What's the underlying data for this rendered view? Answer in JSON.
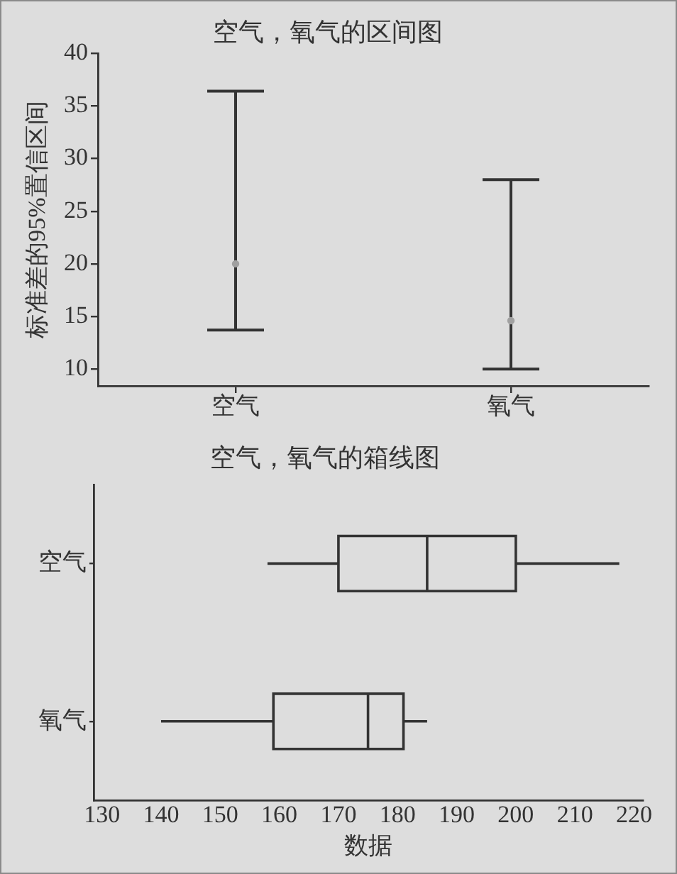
{
  "chart_data": [
    {
      "type": "scatter",
      "title": "空气，氧气的区间图",
      "ylabel": "标准差的95%置信区间",
      "categories": [
        "空气",
        "氧气"
      ],
      "values": [
        20,
        14.6
      ],
      "errors": [
        [
          13.7,
          36.4
        ],
        [
          10,
          28
        ]
      ],
      "color": "#a0a0a0",
      "marker": "circle",
      "ylim": [
        8.4,
        40
      ],
      "yticks": [
        10,
        15,
        20,
        25,
        30,
        35,
        40
      ]
    },
    {
      "type": "box",
      "orientation": "horizontal",
      "title": "空气，氧气的箱线图",
      "xlabel": "数据",
      "categories": [
        "空气",
        "氧气"
      ],
      "boxes": [
        {
          "low": 158,
          "q1": 170,
          "median": 185,
          "q3": 200,
          "high": 217.5
        },
        {
          "low": 140,
          "q1": 159,
          "median": 175,
          "q3": 181,
          "high": 185
        }
      ],
      "color": "#333333",
      "xlim": [
        128.6,
        221.5
      ],
      "xticks": [
        130,
        140,
        150,
        160,
        170,
        180,
        190,
        200,
        210,
        220
      ]
    }
  ]
}
